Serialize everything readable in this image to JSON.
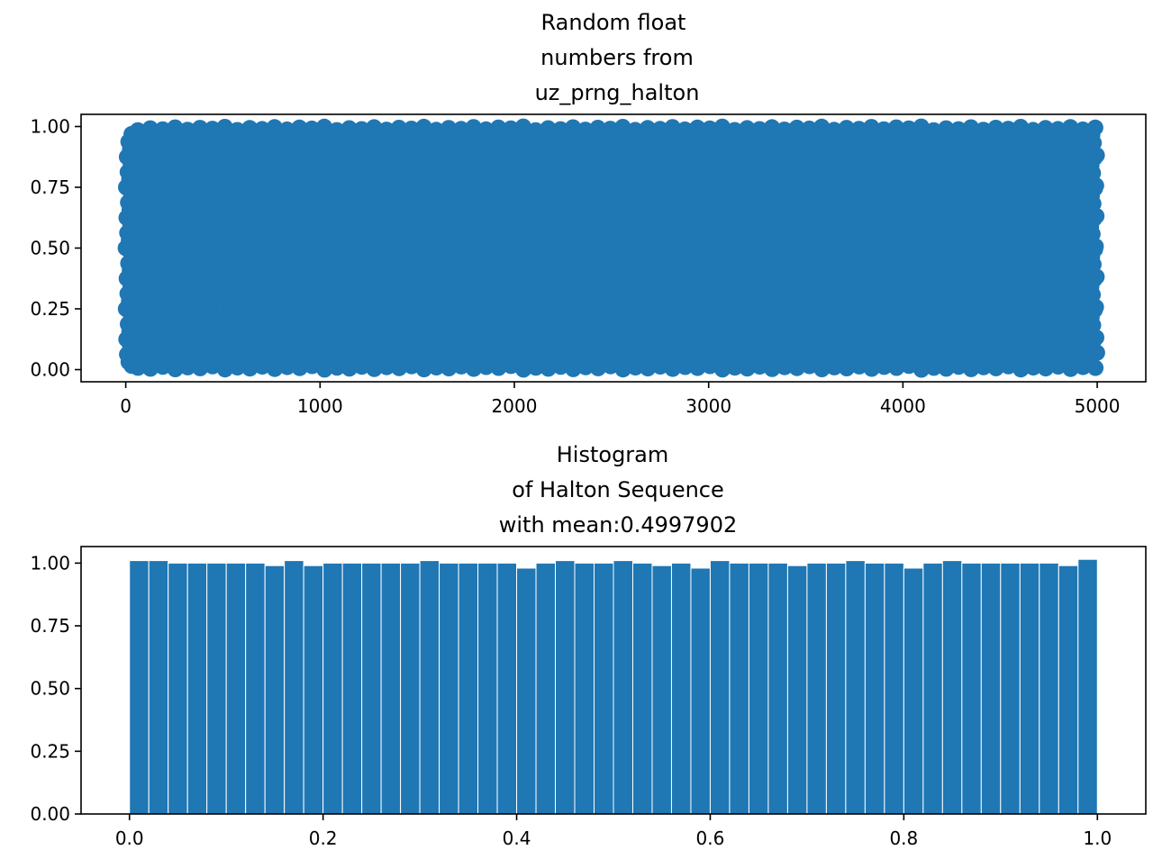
{
  "chart_data": [
    {
      "type": "line",
      "title_lines": [
        "Random float",
        "numbers from",
        "uz_prng_halton"
      ],
      "marker": "o",
      "color": "#1f77b4",
      "point_count": 5000,
      "sequence": "halton base 2",
      "xlim": [
        -230,
        5250
      ],
      "ylim": [
        -0.05,
        1.05
      ],
      "xticks": [
        0,
        1000,
        2000,
        3000,
        4000,
        5000
      ],
      "xtick_labels": [
        "0",
        "1000",
        "2000",
        "3000",
        "4000",
        "5000"
      ],
      "yticks": [
        0,
        0.25,
        0.5,
        0.75,
        1.0
      ],
      "ytick_labels": [
        "0.00",
        "0.25",
        "0.50",
        "0.75",
        "1.00"
      ],
      "grid": false
    },
    {
      "type": "bar",
      "title_lines": [
        "Histogram",
        "of Halton Sequence",
        "with mean:0.4997902"
      ],
      "color": "#1f77b4",
      "edgecolor": "#ffffff",
      "bin_range": [
        0,
        1
      ],
      "bins": 50,
      "values": [
        1.01,
        1.01,
        1.0,
        1.0,
        1.0,
        1.0,
        1.0,
        0.99,
        1.01,
        0.99,
        1.0,
        1.0,
        1.0,
        1.0,
        1.0,
        1.01,
        1.0,
        1.0,
        1.0,
        1.0,
        0.98,
        1.0,
        1.01,
        1.0,
        1.0,
        1.01,
        1.0,
        0.99,
        1.0,
        0.98,
        1.01,
        1.0,
        1.0,
        1.0,
        0.99,
        1.0,
        1.0,
        1.01,
        1.0,
        1.0,
        0.98,
        1.0,
        1.01,
        1.0,
        1.0,
        1.0,
        1.0,
        1.0,
        0.99,
        1.015
      ],
      "xlim": [
        -0.05,
        1.05
      ],
      "ylim": [
        0,
        1.066
      ],
      "xticks": [
        0,
        0.2,
        0.4,
        0.6,
        0.8,
        1.0
      ],
      "xtick_labels": [
        "0.0",
        "0.2",
        "0.4",
        "0.6",
        "0.8",
        "1.0"
      ],
      "yticks": [
        0,
        0.25,
        0.5,
        0.75,
        1.0
      ],
      "ytick_labels": [
        "0.00",
        "0.25",
        "0.50",
        "0.75",
        "1.00"
      ],
      "grid": false
    }
  ]
}
